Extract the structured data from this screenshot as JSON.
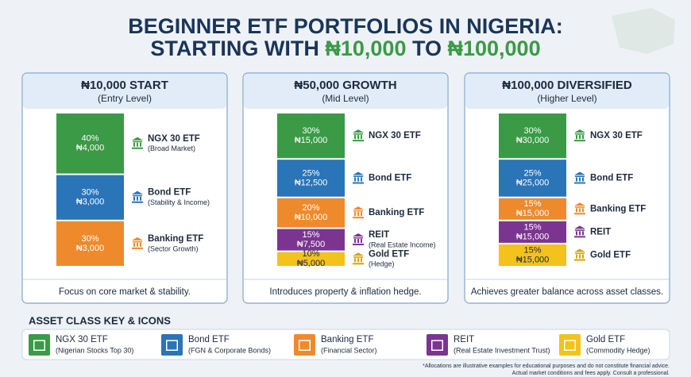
{
  "title_line1": "BEGINNER ETF PORTFOLIOS IN NIGERIA:",
  "title_line2": [
    "STARTING WITH ",
    "₦10,000",
    " TO ",
    "₦100,000"
  ],
  "panels": [
    {
      "title": "₦10,000 START",
      "subtitle": "(Entry Level)",
      "footer": "Focus on core market & stability.",
      "segments": [
        {
          "name": "NGX 30 ETF",
          "note": "(Broad Market)",
          "percent": 40,
          "percent_label": "40%",
          "amount_label": "₦4,000",
          "color": "#3a9a45"
        },
        {
          "name": "Bond ETF",
          "note": "(Stability & Income)",
          "percent": 30,
          "percent_label": "30%",
          "amount_label": "₦3,000",
          "color": "#2a74b8"
        },
        {
          "name": "Banking ETF",
          "note": "(Sector Growth)",
          "percent": 30,
          "percent_label": "30%",
          "amount_label": "₦3,000",
          "color": "#ee8a2c"
        }
      ]
    },
    {
      "title": "₦50,000 GROWTH",
      "subtitle": "(Mid Level)",
      "footer": "Introduces property & inflation hedge.",
      "segments": [
        {
          "name": "NGX 30 ETF",
          "percent": 30,
          "percent_label": "30%",
          "amount_label": "₦15,000",
          "color": "#3a9a45"
        },
        {
          "name": "Bond ETF",
          "percent": 25,
          "percent_label": "25%",
          "amount_label": "₦12,500",
          "color": "#2a74b8"
        },
        {
          "name": "Banking ETF",
          "percent": 20,
          "percent_label": "20%",
          "amount_label": "₦10,000",
          "color": "#ee8a2c"
        },
        {
          "name": "REIT",
          "note": "(Real Estate Income)",
          "percent": 15,
          "percent_label": "15%",
          "amount_label": "₦7,500",
          "color": "#7b3590"
        },
        {
          "name": "Gold ETF",
          "note": "(Hedge)",
          "percent": 10,
          "percent_label": "10%",
          "amount_label": "₦5,000",
          "color": "#f3c21b"
        }
      ]
    },
    {
      "title": "₦100,000 DIVERSIFIED",
      "subtitle": "(Higher Level)",
      "footer": "Achieves greater balance across asset classes.",
      "segments": [
        {
          "name": "NGX 30 ETF",
          "percent": 30,
          "percent_label": "30%",
          "amount_label": "₦30,000",
          "color": "#3a9a45"
        },
        {
          "name": "Bond ETF",
          "percent": 25,
          "percent_label": "25%",
          "amount_label": "₦25,000",
          "color": "#2a74b8"
        },
        {
          "name": "Banking ETF",
          "percent": 15,
          "percent_label": "15%",
          "amount_label": "₦15,000",
          "color": "#ee8a2c"
        },
        {
          "name": "REIT",
          "percent": 15,
          "percent_label": "15%",
          "amount_label": "₦15,000",
          "color": "#7b3590"
        },
        {
          "name": "Gold ETF",
          "percent": 15,
          "percent_label": "15%",
          "amount_label": "₦15,000",
          "color": "#f3c21b"
        }
      ]
    }
  ],
  "key_title": "ASSET CLASS KEY & ICONS",
  "key": [
    {
      "name": "NGX 30 ETF",
      "desc": "(Nigerian Stocks Top 30)",
      "color": "#3a9a45"
    },
    {
      "name": "Bond ETF",
      "desc": "(FGN & Corporate Bonds)",
      "color": "#2a74b8"
    },
    {
      "name": "Banking ETF",
      "desc": "(Financial Sector)",
      "color": "#ee8a2c"
    },
    {
      "name": "REIT",
      "desc": "(Real Estate Investment Trust)",
      "color": "#7b3590"
    },
    {
      "name": "Gold ETF",
      "desc": "(Commodity Hedge)",
      "color": "#f3c21b"
    }
  ],
  "footnote": [
    "*Allocations are illustrative examples for educational purposes and do not constitute financial advice.",
    "Actual market conditions and fees apply. Consult a professional."
  ]
}
